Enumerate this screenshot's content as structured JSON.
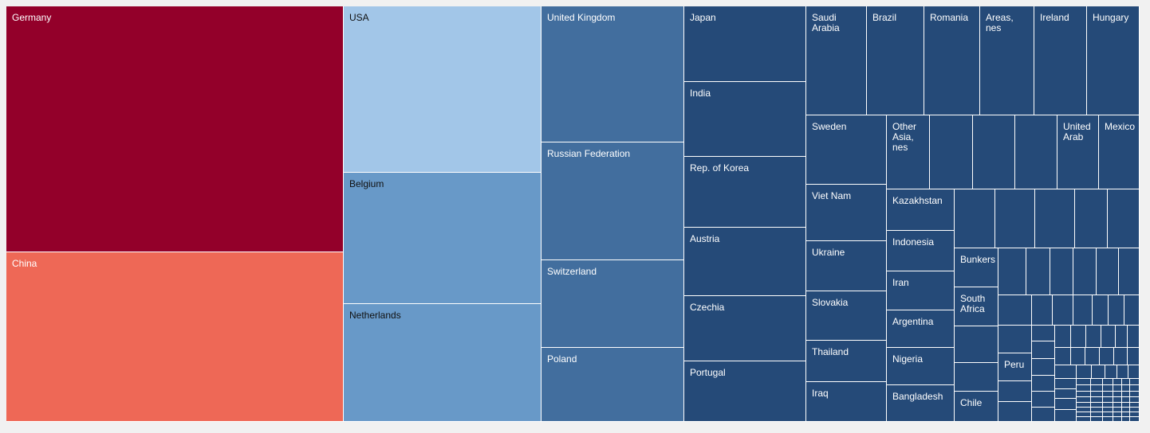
{
  "chart_data": {
    "type": "treemap",
    "colors": {
      "top1": "#93002a",
      "top2": "#ee6856",
      "light": "#a2c6e8",
      "mid": "#6899c8",
      "deep": "#426e9e",
      "dark": "#254a78"
    },
    "labeled_items": [
      {
        "name": "Germany",
        "tier": "top1"
      },
      {
        "name": "China",
        "tier": "top2"
      },
      {
        "name": "USA",
        "tier": "light"
      },
      {
        "name": "Belgium",
        "tier": "mid"
      },
      {
        "name": "Netherlands",
        "tier": "mid"
      },
      {
        "name": "United Kingdom",
        "tier": "deep"
      },
      {
        "name": "Russian Federation",
        "tier": "deep"
      },
      {
        "name": "Switzerland",
        "tier": "deep"
      },
      {
        "name": "Poland",
        "tier": "deep"
      },
      {
        "name": "Japan",
        "tier": "dark"
      },
      {
        "name": "India",
        "tier": "dark"
      },
      {
        "name": "Rep. of Korea",
        "tier": "dark"
      },
      {
        "name": "Austria",
        "tier": "dark"
      },
      {
        "name": "Czechia",
        "tier": "dark"
      },
      {
        "name": "Portugal",
        "tier": "dark"
      },
      {
        "name": "Saudi Arabia",
        "tier": "dark"
      },
      {
        "name": "Brazil",
        "tier": "dark"
      },
      {
        "name": "Romania",
        "tier": "dark"
      },
      {
        "name": "Areas, nes",
        "tier": "dark"
      },
      {
        "name": "Ireland",
        "tier": "dark"
      },
      {
        "name": "Hungary",
        "tier": "dark"
      },
      {
        "name": "Sweden",
        "tier": "dark"
      },
      {
        "name": "Other Asia, nes",
        "tier": "dark"
      },
      {
        "name": "United Arab",
        "tier": "dark"
      },
      {
        "name": "Mexico",
        "tier": "dark"
      },
      {
        "name": "Viet Nam",
        "tier": "dark"
      },
      {
        "name": "Ukraine",
        "tier": "dark"
      },
      {
        "name": "Slovakia",
        "tier": "dark"
      },
      {
        "name": "Thailand",
        "tier": "dark"
      },
      {
        "name": "Iraq",
        "tier": "dark"
      },
      {
        "name": "Kazakhstan",
        "tier": "dark"
      },
      {
        "name": "Indonesia",
        "tier": "dark"
      },
      {
        "name": "Iran",
        "tier": "dark"
      },
      {
        "name": "Argentina",
        "tier": "dark"
      },
      {
        "name": "Nigeria",
        "tier": "dark"
      },
      {
        "name": "Bangladesh",
        "tier": "dark"
      },
      {
        "name": "Bunkers",
        "tier": "dark"
      },
      {
        "name": "South Africa",
        "tier": "dark"
      },
      {
        "name": "Peru",
        "tier": "dark"
      },
      {
        "name": "Chile",
        "tier": "dark"
      }
    ]
  }
}
